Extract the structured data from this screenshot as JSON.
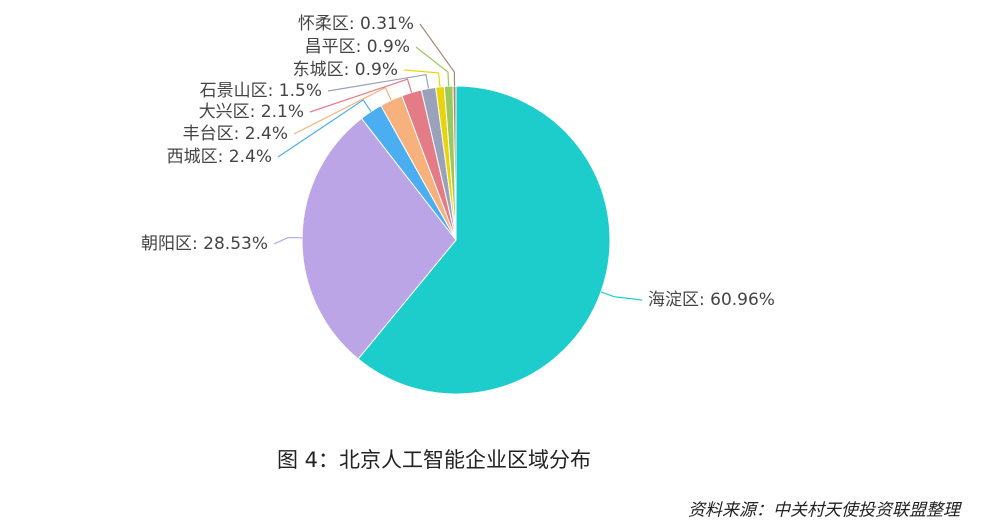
{
  "chart_data": {
    "type": "pie",
    "title": "图 4：北京人工智能企业区域分布",
    "source": "资料来源：中关村天使投资联盟整理",
    "values": [
      60.96,
      28.53,
      2.4,
      2.4,
      2.1,
      1.5,
      0.9,
      0.9,
      0.31
    ],
    "value_labels": [
      "海淀区: 60.96%",
      "朝阳区: 28.53%",
      "西城区: 2.4%",
      "丰台区: 2.4%",
      "大兴区: 2.1%",
      "石景山区: 1.5%",
      "东城区: 0.9%",
      "昌平区: 0.9%",
      "怀柔区: 0.31%"
    ],
    "colors": [
      "#1ccdcc",
      "#bca5e6",
      "#4aaef0",
      "#f7b17c",
      "#e47c87",
      "#9aa2bb",
      "#e9d40c",
      "#9cc95c",
      "#a58a74"
    ]
  }
}
